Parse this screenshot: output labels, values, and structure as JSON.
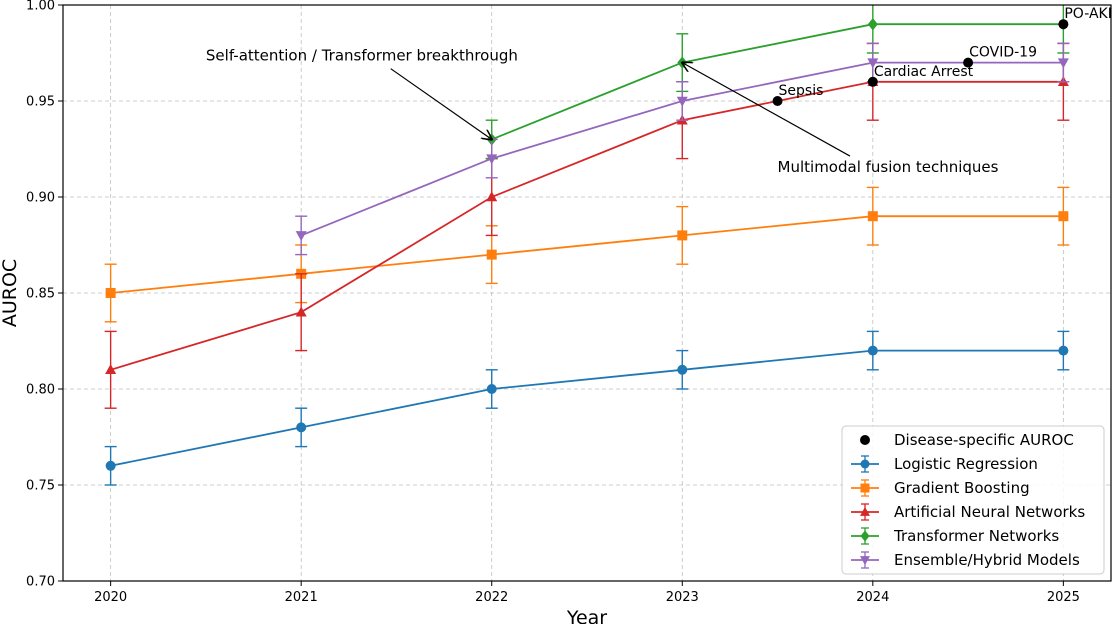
{
  "chart_data": {
    "type": "line",
    "title": "",
    "xlabel": "Year",
    "ylabel": "AUROC",
    "x": [
      2020,
      2021,
      2022,
      2023,
      2024,
      2025
    ],
    "xticks": [
      "2020",
      "2021",
      "2022",
      "2023",
      "2024",
      "2025"
    ],
    "xlim": [
      2019.75,
      2025.25
    ],
    "ylim": [
      0.7,
      1.0
    ],
    "yticks": [
      "0.70",
      "0.75",
      "0.80",
      "0.85",
      "0.90",
      "0.95",
      "1.00"
    ],
    "grid": true,
    "legend_position": "bottom-right",
    "series": [
      {
        "name": "Logistic Regression",
        "color": "#1f77b4",
        "marker": "circle",
        "x": [
          2020,
          2021,
          2022,
          2023,
          2024,
          2025
        ],
        "values": [
          0.76,
          0.78,
          0.8,
          0.81,
          0.82,
          0.82
        ],
        "errors": [
          0.01,
          0.01,
          0.01,
          0.01,
          0.01,
          0.01
        ]
      },
      {
        "name": "Gradient Boosting",
        "color": "#ff7f0e",
        "marker": "square",
        "x": [
          2020,
          2021,
          2022,
          2023,
          2024,
          2025
        ],
        "values": [
          0.85,
          0.86,
          0.87,
          0.88,
          0.89,
          0.89
        ],
        "errors": [
          0.015,
          0.015,
          0.015,
          0.015,
          0.015,
          0.015
        ]
      },
      {
        "name": "Artificial Neural Networks",
        "color": "#d62728",
        "marker": "triangle-up",
        "x": [
          2020,
          2021,
          2022,
          2023,
          2024,
          2025
        ],
        "values": [
          0.81,
          0.84,
          0.9,
          0.94,
          0.96,
          0.96
        ],
        "errors": [
          0.02,
          0.02,
          0.02,
          0.02,
          0.02,
          0.02
        ]
      },
      {
        "name": "Transformer Networks",
        "color": "#2ca02c",
        "marker": "diamond",
        "x": [
          2022,
          2023,
          2024,
          2025
        ],
        "values": [
          0.93,
          0.97,
          0.99,
          0.99
        ],
        "errors": [
          0.01,
          0.015,
          0.015,
          0.015
        ]
      },
      {
        "name": "Ensemble/Hybrid Models",
        "color": "#9467bd",
        "marker": "triangle-down",
        "x": [
          2021,
          2022,
          2023,
          2024,
          2025
        ],
        "values": [
          0.88,
          0.92,
          0.95,
          0.97,
          0.97
        ],
        "errors": [
          0.01,
          0.01,
          0.01,
          0.01,
          0.01
        ]
      }
    ],
    "disease_specific": {
      "name": "Disease-specific AUROC",
      "color": "#000000",
      "points": [
        {
          "label": "Sepsis",
          "x": 2023.5,
          "y": 0.95
        },
        {
          "label": "Cardiac Arrest",
          "x": 2024.0,
          "y": 0.96
        },
        {
          "label": "COVID-19",
          "x": 2024.5,
          "y": 0.97
        },
        {
          "label": "PO-AKI",
          "x": 2025.0,
          "y": 0.99
        }
      ]
    },
    "annotations": [
      {
        "text": "Self-attention / Transformer breakthrough",
        "target_x": 2022,
        "target_y": 0.93,
        "text_x": 2020.5,
        "text_y": 0.971
      },
      {
        "text": "Multimodal fusion techniques",
        "target_x": 2023,
        "target_y": 0.97,
        "text_x": 2023.5,
        "text_y": 0.913
      }
    ]
  }
}
